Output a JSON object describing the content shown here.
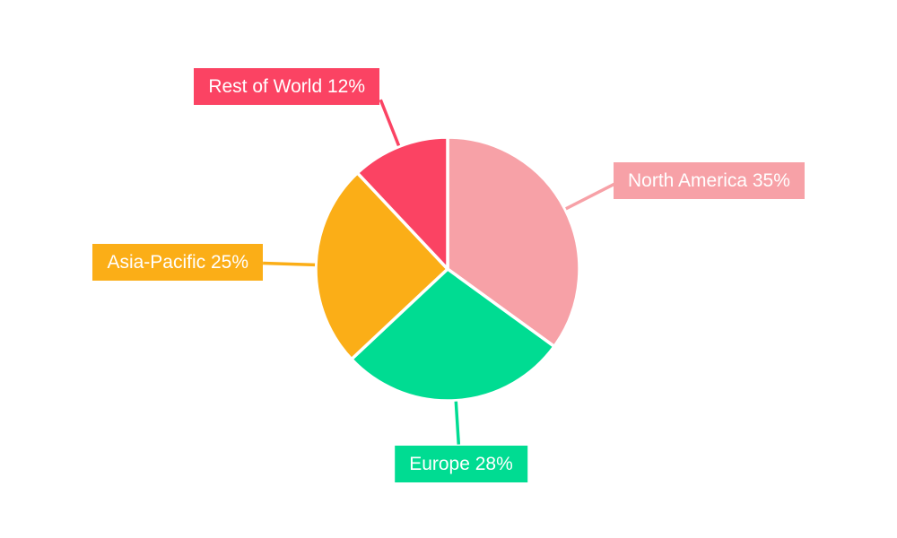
{
  "chart_data": {
    "type": "pie",
    "title": "",
    "legend_position": "none",
    "background": "#FFFFFF",
    "slice_border_color": "#FFFFFF",
    "label_text_color": "#FFFFFF",
    "label_style": "callout-boxes-with-leader-lines",
    "start_angle": "12-o-clock",
    "direction": "clockwise",
    "categories": [
      "North America",
      "Europe",
      "Asia-Pacific",
      "Rest of World"
    ],
    "values": [
      35,
      28,
      25,
      12
    ],
    "total": 100,
    "slices": [
      {
        "label": "North America",
        "value": 35,
        "display": "North America 35%",
        "color": "#F7A1A7"
      },
      {
        "label": "Europe",
        "value": 28,
        "display": "Europe 28%",
        "color": "#00DC92"
      },
      {
        "label": "Asia-Pacific",
        "value": 25,
        "display": "Asia-Pacific 25%",
        "color": "#FBAE17"
      },
      {
        "label": "Rest of World",
        "value": 12,
        "display": "Rest of World 12%",
        "color": "#FB4363"
      }
    ]
  }
}
